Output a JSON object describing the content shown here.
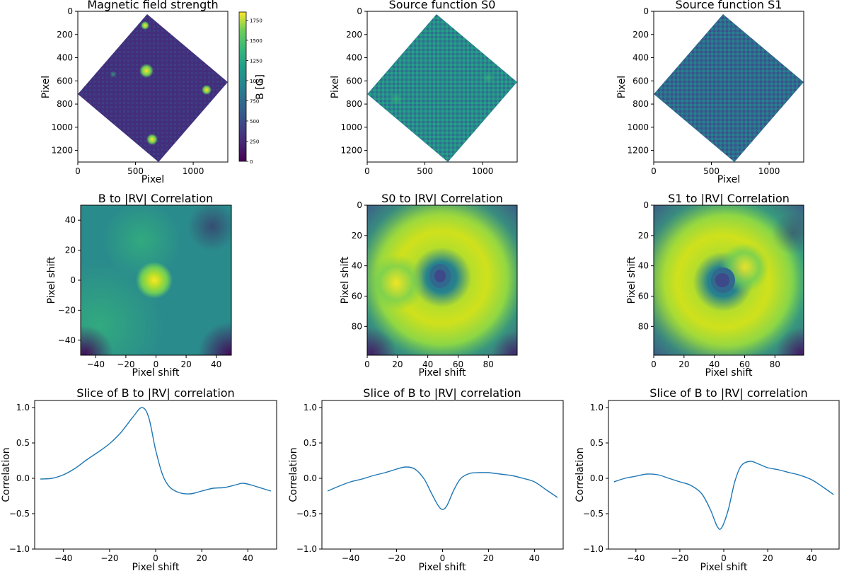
{
  "chart_data": [
    {
      "type": "heatmap",
      "title": "Magnetic field strength",
      "xlabel": "Pixel",
      "ylabel": "Pixel",
      "xticks": [
        0,
        500,
        1000
      ],
      "yticks": [
        0,
        200,
        400,
        600,
        800,
        1000,
        1200
      ],
      "xlim": [
        0,
        1300
      ],
      "ylim": [
        1300,
        0
      ],
      "region_shape": "rotated square (diamond)",
      "colormap": "viridis",
      "colorbar": {
        "label": "B [G]",
        "ticks": [
          0,
          250,
          500,
          750,
          1000,
          1250,
          1500,
          1750
        ],
        "range": [
          0,
          1850
        ]
      }
    },
    {
      "type": "heatmap",
      "title": "Source function S0",
      "xlabel": "",
      "ylabel": "Pixel",
      "xticks": [
        0,
        500,
        1000
      ],
      "yticks": [
        0,
        200,
        400,
        600,
        800,
        1000,
        1200
      ],
      "xlim": [
        0,
        1300
      ],
      "ylim": [
        1300,
        0
      ],
      "region_shape": "rotated square (diamond)",
      "colormap": "viridis"
    },
    {
      "type": "heatmap",
      "title": "Source function S1",
      "xlabel": "Pixel",
      "ylabel": "Pixel",
      "xticks": [
        0,
        500,
        1000
      ],
      "yticks": [
        0,
        200,
        400,
        600,
        800,
        1000,
        1200
      ],
      "xlim": [
        0,
        1300
      ],
      "ylim": [
        1300,
        0
      ],
      "region_shape": "rotated square (diamond)",
      "colormap": "viridis"
    },
    {
      "type": "heatmap",
      "title": "B to |RV| Correlation",
      "xlabel": "Pixel shift",
      "ylabel": "Pixel shift",
      "xticks": [
        -40,
        -20,
        0,
        20,
        40
      ],
      "yticks": [
        40,
        20,
        0,
        -20,
        -40
      ],
      "xlim": [
        -50,
        50
      ],
      "ylim": [
        -50,
        50
      ],
      "colormap": "viridis",
      "feature": "bright peak near (0, 0)"
    },
    {
      "type": "heatmap",
      "title": "S0 to |RV| Correlation",
      "xlabel": "Pixel shift",
      "ylabel": "Pixel shift",
      "xticks": [
        0,
        20,
        40,
        60,
        80
      ],
      "yticks": [
        0,
        20,
        40,
        60,
        80
      ],
      "xlim": [
        0,
        99
      ],
      "ylim": [
        99,
        0
      ],
      "colormap": "viridis",
      "feature": "dark minimum near (48, 47) inside a bright ring"
    },
    {
      "type": "heatmap",
      "title": "S1 to |RV| Correlation",
      "xlabel": "Pixel shift",
      "ylabel": "Pixel shift",
      "xticks": [
        0,
        20,
        40,
        60,
        80
      ],
      "yticks": [
        0,
        20,
        40,
        60,
        80
      ],
      "xlim": [
        0,
        99
      ],
      "ylim": [
        99,
        0
      ],
      "colormap": "viridis",
      "feature": "dark minimum near (45, 49) inside a bright ring"
    },
    {
      "type": "line",
      "title": "Slice of B to |RV| correlation",
      "xlabel": "Pixel shift",
      "ylabel": "Correlation",
      "xticks": [
        -40,
        -20,
        0,
        20,
        40
      ],
      "yticks": [
        -1.0,
        -0.5,
        0.0,
        0.5,
        1.0
      ],
      "xlim": [
        -52.5,
        52.5
      ],
      "ylim": [
        -1.0,
        1.1
      ],
      "series": [
        {
          "name": "slice",
          "color": "#1f77b4",
          "x": [
            -50,
            -45,
            -40,
            -35,
            -30,
            -25,
            -20,
            -15,
            -10,
            -6,
            -3,
            0,
            3,
            6,
            10,
            15,
            20,
            25,
            30,
            35,
            38,
            42,
            46,
            50
          ],
          "y": [
            -0.01,
            0.0,
            0.05,
            0.14,
            0.26,
            0.37,
            0.49,
            0.65,
            0.86,
            1.0,
            0.86,
            0.4,
            0.05,
            -0.12,
            -0.2,
            -0.22,
            -0.18,
            -0.14,
            -0.13,
            -0.09,
            -0.07,
            -0.1,
            -0.14,
            -0.18
          ]
        }
      ]
    },
    {
      "type": "line",
      "title": "Slice of B to |RV| correlation",
      "xlabel": "Pixel shift",
      "ylabel": "Correlation",
      "xticks": [
        -40,
        -20,
        0,
        20,
        40
      ],
      "yticks": [
        -1.0,
        -0.5,
        0.0,
        0.5,
        1.0
      ],
      "xlim": [
        -52.5,
        52.5
      ],
      "ylim": [
        -1.0,
        1.1
      ],
      "series": [
        {
          "name": "slice",
          "color": "#1f77b4",
          "x": [
            -50,
            -45,
            -40,
            -35,
            -30,
            -25,
            -20,
            -16,
            -12,
            -8,
            -5,
            -2,
            0,
            2,
            5,
            8,
            12,
            16,
            20,
            25,
            30,
            35,
            40,
            45,
            50
          ],
          "y": [
            -0.18,
            -0.11,
            -0.05,
            -0.01,
            0.04,
            0.08,
            0.13,
            0.16,
            0.13,
            -0.01,
            -0.2,
            -0.38,
            -0.44,
            -0.38,
            -0.16,
            0.0,
            0.07,
            0.08,
            0.08,
            0.06,
            0.04,
            0.0,
            -0.05,
            -0.16,
            -0.27
          ]
        }
      ]
    },
    {
      "type": "line",
      "title": "Slice of B to |RV| correlation",
      "xlabel": "Pixel shift",
      "ylabel": "Correlation",
      "xticks": [
        -40,
        -20,
        0,
        20,
        40
      ],
      "yticks": [
        -1.0,
        -0.5,
        0.0,
        0.5,
        1.0
      ],
      "xlim": [
        -52.5,
        52.5
      ],
      "ylim": [
        -1.0,
        1.1
      ],
      "series": [
        {
          "name": "slice",
          "color": "#1f77b4",
          "x": [
            -50,
            -45,
            -40,
            -35,
            -30,
            -25,
            -20,
            -15,
            -10,
            -6,
            -3,
            -1,
            2,
            5,
            8,
            12,
            16,
            20,
            25,
            30,
            35,
            40,
            45,
            50
          ],
          "y": [
            -0.05,
            0.0,
            0.03,
            0.06,
            0.05,
            0.0,
            -0.05,
            -0.1,
            -0.22,
            -0.45,
            -0.68,
            -0.7,
            -0.45,
            -0.05,
            0.18,
            0.24,
            0.2,
            0.15,
            0.12,
            0.08,
            0.04,
            -0.02,
            -0.12,
            -0.23
          ]
        }
      ]
    }
  ]
}
